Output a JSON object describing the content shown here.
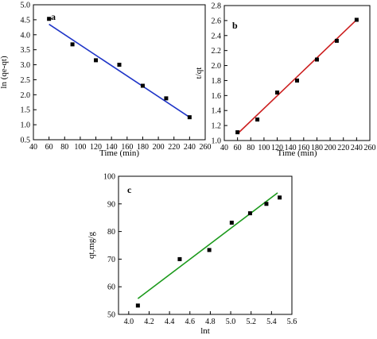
{
  "chart_data": [
    {
      "id": "a",
      "type": "scatter",
      "panel_label": "a",
      "xlabel": "Time (min)",
      "ylabel": "ln (qe-qt)",
      "xlim": [
        40,
        260
      ],
      "ylim": [
        0.5,
        5.0
      ],
      "xticks": [
        40,
        60,
        80,
        100,
        120,
        140,
        160,
        180,
        200,
        220,
        240,
        260
      ],
      "yticks": [
        0.5,
        1.0,
        1.5,
        2.0,
        2.5,
        3.0,
        3.5,
        4.0,
        4.5,
        5.0
      ],
      "xtick_labels": [
        "40",
        "60",
        "80",
        "100",
        "120",
        "140",
        "160",
        "180",
        "200",
        "220",
        "240",
        "260"
      ],
      "ytick_labels": [
        "0.5",
        "1.0",
        "1.5",
        "2.0",
        "2.5",
        "3.0",
        "3.5",
        "4.0",
        "4.5",
        "5.0"
      ],
      "points": {
        "x": [
          60,
          90,
          120,
          150,
          180,
          210,
          240
        ],
        "y": [
          4.53,
          3.68,
          3.15,
          3.0,
          2.3,
          1.88,
          1.25
        ]
      },
      "fit_line": {
        "x": [
          60,
          240
        ],
        "y": [
          4.35,
          1.25
        ]
      },
      "line_color": "#1f35c8",
      "grid": false
    },
    {
      "id": "b",
      "type": "scatter",
      "panel_label": "b",
      "xlabel": "Time (min)",
      "ylabel": "t/qt",
      "xlim": [
        40,
        260
      ],
      "ylim": [
        1.0,
        2.8
      ],
      "xticks": [
        40,
        60,
        80,
        100,
        120,
        140,
        160,
        180,
        200,
        220,
        240,
        260
      ],
      "yticks": [
        1.0,
        1.2,
        1.4,
        1.6,
        1.8,
        2.0,
        2.2,
        2.4,
        2.6,
        2.8
      ],
      "xtick_labels": [
        "40",
        "60",
        "80",
        "100",
        "120",
        "140",
        "160",
        "180",
        "200",
        "220",
        "240",
        "260"
      ],
      "ytick_labels": [
        "1.0",
        "1.2",
        "1.4",
        "1.6",
        "1.8",
        "2.0",
        "2.2",
        "2.4",
        "2.6",
        "2.8"
      ],
      "points": {
        "x": [
          60,
          90,
          120,
          150,
          180,
          210,
          240
        ],
        "y": [
          1.11,
          1.28,
          1.64,
          1.8,
          2.08,
          2.33,
          2.61
        ]
      },
      "fit_line": {
        "x": [
          60,
          240
        ],
        "y": [
          1.09,
          2.61
        ]
      },
      "line_color": "#cc1f1f",
      "grid": false
    },
    {
      "id": "c",
      "type": "scatter",
      "panel_label": "c",
      "xlabel": "lnt",
      "ylabel": "qt,mg/g",
      "xlim": [
        3.9,
        5.6
      ],
      "ylim": [
        50,
        100
      ],
      "xticks": [
        4.0,
        4.2,
        4.4,
        4.6,
        4.8,
        5.0,
        5.2,
        5.4,
        5.6
      ],
      "yticks": [
        50,
        60,
        70,
        80,
        90,
        100
      ],
      "xtick_labels": [
        "4.0",
        "4.2",
        "4.4",
        "4.6",
        "4.8",
        "5.0",
        "5.2",
        "5.4",
        "5.6"
      ],
      "ytick_labels": [
        "50",
        "60",
        "70",
        "80",
        "90",
        "100"
      ],
      "points": {
        "x": [
          4.09,
          4.5,
          4.79,
          5.01,
          5.19,
          5.35,
          5.48
        ],
        "y": [
          53.2,
          70.0,
          73.3,
          83.2,
          86.6,
          90.0,
          92.3
        ]
      },
      "fit_line": {
        "x": [
          4.09,
          5.46
        ],
        "y": [
          55.7,
          94.0
        ]
      },
      "line_color": "#1c9a1c",
      "grid": false
    }
  ]
}
